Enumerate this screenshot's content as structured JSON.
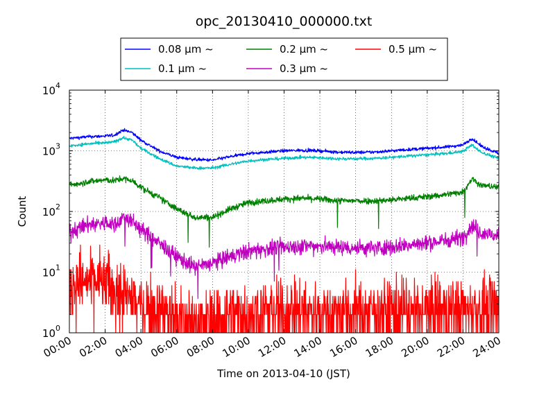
{
  "chart_data": {
    "type": "line",
    "title": "opc_20130410_000000.txt",
    "xlabel": "Time on 2013-04-10 (JST)",
    "ylabel": "Count",
    "xlim": [
      0,
      24
    ],
    "ylim": [
      1,
      10000
    ],
    "yscale": "log",
    "grid": true,
    "legend_position": "top-center, above plot",
    "x_tick_labels": [
      "00:00",
      "02:00",
      "04:00",
      "06:00",
      "08:00",
      "10:00",
      "12:00",
      "14:00",
      "16:00",
      "18:00",
      "20:00",
      "22:00",
      "24:00"
    ],
    "y_ticks": [
      {
        "value": 1,
        "base": "10",
        "exp": "0"
      },
      {
        "value": 10,
        "base": "10",
        "exp": "1"
      },
      {
        "value": 100,
        "base": "10",
        "exp": "2"
      },
      {
        "value": 1000,
        "base": "10",
        "exp": "3"
      },
      {
        "value": 10000,
        "base": "10",
        "exp": "4"
      }
    ],
    "x_hours": [
      0,
      1,
      2,
      2.5,
      3,
      3.5,
      4,
      5,
      6,
      7,
      8,
      9,
      10,
      11,
      12,
      13,
      14,
      15,
      16,
      17,
      18,
      19,
      20,
      21,
      22,
      22.5,
      23,
      24
    ],
    "series": [
      {
        "name": "0.08 μm ~",
        "color": "#0000ff",
        "noise": 0.06,
        "values": [
          1600,
          1700,
          1750,
          1800,
          2200,
          2000,
          1500,
          1000,
          780,
          720,
          700,
          800,
          900,
          950,
          1000,
          1020,
          1000,
          950,
          940,
          950,
          1000,
          1050,
          1100,
          1150,
          1250,
          1600,
          1200,
          900
        ]
      },
      {
        "name": "0.1 μm ~",
        "color": "#00bfbf",
        "noise": 0.06,
        "values": [
          1200,
          1300,
          1350,
          1400,
          1650,
          1500,
          1100,
          750,
          560,
          520,
          520,
          600,
          680,
          720,
          750,
          780,
          770,
          740,
          740,
          750,
          780,
          820,
          860,
          900,
          980,
          1250,
          950,
          750
        ]
      },
      {
        "name": "0.2 μm ~",
        "color": "#008000",
        "noise": 0.12,
        "values": [
          270,
          310,
          330,
          320,
          350,
          320,
          250,
          170,
          110,
          80,
          80,
          110,
          140,
          150,
          160,
          165,
          160,
          150,
          150,
          150,
          155,
          165,
          175,
          190,
          210,
          350,
          270,
          250
        ]
      },
      {
        "name": "0.3 μm ~",
        "color": "#bf00bf",
        "noise": 0.3,
        "values": [
          45,
          60,
          65,
          60,
          80,
          70,
          50,
          30,
          18,
          12,
          14,
          18,
          22,
          24,
          26,
          27,
          27,
          26,
          25,
          25,
          26,
          28,
          30,
          33,
          38,
          60,
          45,
          38
        ]
      },
      {
        "name": "0.5 μm ~",
        "color": "#ff0000",
        "noise": 1.0,
        "values": [
          6,
          7,
          6.5,
          6,
          4,
          3.5,
          3,
          2.5,
          2,
          1.6,
          1.6,
          2,
          2.2,
          2.4,
          2.4,
          2.4,
          2.4,
          2.3,
          2.3,
          2.3,
          2.3,
          2.4,
          2.4,
          2.5,
          2.5,
          2.8,
          2.6,
          2.5
        ]
      }
    ]
  }
}
